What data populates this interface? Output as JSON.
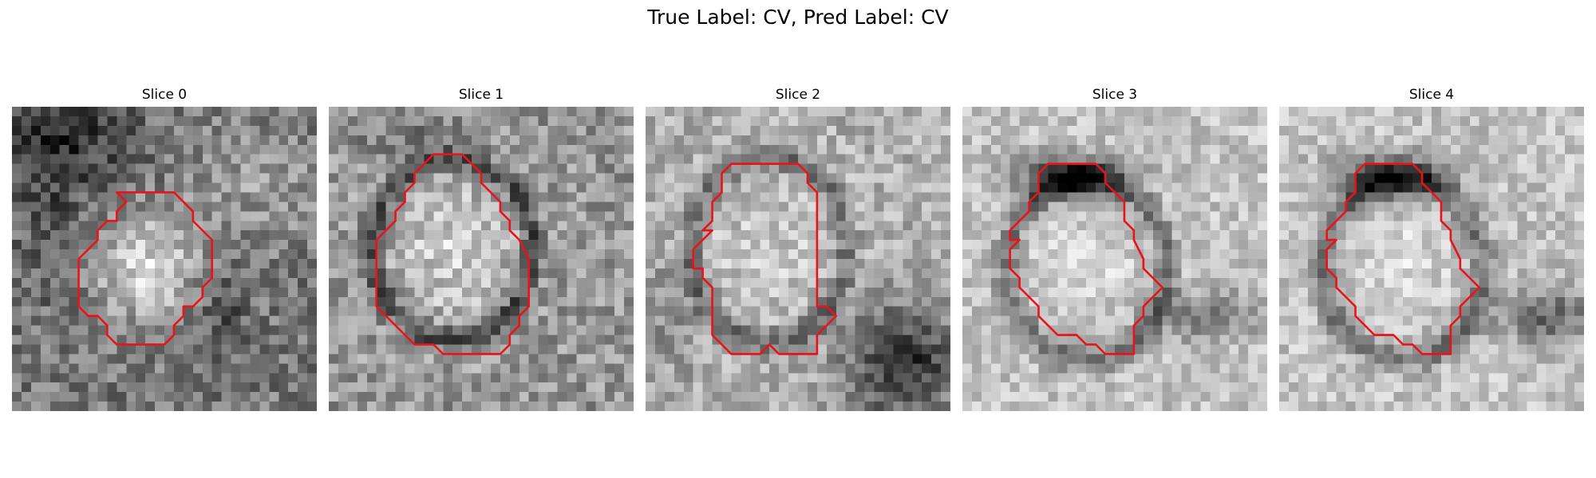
{
  "figure": {
    "title": "True Label: CV, Pred Label: CV"
  },
  "contour_color": "#e8141c",
  "panels": [
    {
      "title": "Slice 0",
      "tone": "dark-background-bright-round-center",
      "contour": [
        [
          11,
          9
        ],
        [
          17,
          9
        ],
        [
          19,
          11
        ],
        [
          19,
          12
        ],
        [
          21,
          14
        ],
        [
          21,
          18
        ],
        [
          20,
          19
        ],
        [
          20,
          20
        ],
        [
          19,
          21
        ],
        [
          18,
          21
        ],
        [
          18,
          22
        ],
        [
          17,
          23
        ],
        [
          17,
          24
        ],
        [
          16,
          25
        ],
        [
          11,
          25
        ],
        [
          10,
          24
        ],
        [
          10,
          23
        ],
        [
          9,
          22
        ],
        [
          8,
          22
        ],
        [
          7,
          21
        ],
        [
          7,
          20
        ],
        [
          7,
          18
        ],
        [
          7,
          16
        ],
        [
          8,
          15
        ],
        [
          9,
          14
        ],
        [
          9,
          13
        ],
        [
          10,
          12
        ],
        [
          11,
          12
        ],
        [
          11,
          11
        ],
        [
          12,
          10
        ],
        [
          11,
          9
        ]
      ]
    },
    {
      "title": "Slice 1",
      "tone": "bright-round-center-dark-ring",
      "contour": [
        [
          11,
          5
        ],
        [
          14,
          5
        ],
        [
          16,
          7
        ],
        [
          16,
          8
        ],
        [
          18,
          10
        ],
        [
          18,
          11
        ],
        [
          19,
          12
        ],
        [
          19,
          13
        ],
        [
          20,
          14
        ],
        [
          21,
          16
        ],
        [
          21,
          21
        ],
        [
          20,
          22
        ],
        [
          20,
          23
        ],
        [
          19,
          24
        ],
        [
          19,
          25
        ],
        [
          18,
          26
        ],
        [
          13,
          26
        ],
        [
          12,
          26
        ],
        [
          11,
          25
        ],
        [
          9,
          25
        ],
        [
          8,
          24
        ],
        [
          7,
          23
        ],
        [
          6,
          22
        ],
        [
          5,
          21
        ],
        [
          5,
          19
        ],
        [
          5,
          16
        ],
        [
          5,
          14
        ],
        [
          6,
          13
        ],
        [
          7,
          12
        ],
        [
          7,
          11
        ],
        [
          8,
          10
        ],
        [
          8,
          9
        ],
        [
          9,
          8
        ],
        [
          9,
          7
        ],
        [
          10,
          6
        ],
        [
          11,
          5
        ]
      ]
    },
    {
      "title": "Slice 2",
      "tone": "bright-center-dark-lower-right",
      "contour": [
        [
          9,
          6
        ],
        [
          16,
          6
        ],
        [
          17,
          7
        ],
        [
          17,
          8
        ],
        [
          18,
          9
        ],
        [
          18,
          21
        ],
        [
          19,
          21
        ],
        [
          20,
          22
        ],
        [
          19,
          23
        ],
        [
          18,
          24
        ],
        [
          18,
          26
        ],
        [
          14,
          26
        ],
        [
          13,
          25
        ],
        [
          12,
          26
        ],
        [
          9,
          26
        ],
        [
          8,
          25
        ],
        [
          7,
          24
        ],
        [
          7,
          21
        ],
        [
          7,
          19
        ],
        [
          6,
          18
        ],
        [
          6,
          17
        ],
        [
          5,
          17
        ],
        [
          5,
          16
        ],
        [
          5,
          15
        ],
        [
          6,
          14
        ],
        [
          7,
          13
        ],
        [
          6,
          13
        ],
        [
          7,
          12
        ],
        [
          7,
          10
        ],
        [
          8,
          9
        ],
        [
          8,
          7
        ],
        [
          9,
          6
        ]
      ]
    },
    {
      "title": "Slice 3",
      "tone": "bright-background-dark-top-cap",
      "contour": [
        [
          9,
          6
        ],
        [
          14,
          6
        ],
        [
          15,
          7
        ],
        [
          15,
          8
        ],
        [
          16,
          9
        ],
        [
          17,
          10
        ],
        [
          17,
          12
        ],
        [
          18,
          13
        ],
        [
          18,
          14
        ],
        [
          19,
          16
        ],
        [
          19,
          17
        ],
        [
          20,
          18
        ],
        [
          21,
          19
        ],
        [
          20,
          20
        ],
        [
          19,
          21
        ],
        [
          19,
          22
        ],
        [
          18,
          23
        ],
        [
          18,
          26
        ],
        [
          15,
          26
        ],
        [
          14,
          25
        ],
        [
          13,
          25
        ],
        [
          12,
          24
        ],
        [
          10,
          24
        ],
        [
          9,
          23
        ],
        [
          8,
          22
        ],
        [
          8,
          21
        ],
        [
          7,
          20
        ],
        [
          6,
          19
        ],
        [
          6,
          18
        ],
        [
          5,
          17
        ],
        [
          5,
          16
        ],
        [
          5,
          15
        ],
        [
          6,
          14
        ],
        [
          5,
          14
        ],
        [
          5,
          13
        ],
        [
          6,
          12
        ],
        [
          7,
          11
        ],
        [
          7,
          10
        ],
        [
          8,
          9
        ],
        [
          8,
          7
        ],
        [
          9,
          6
        ]
      ]
    },
    {
      "title": "Slice 4",
      "tone": "bright-background-dark-top-cap-right-shadow",
      "contour": [
        [
          9,
          6
        ],
        [
          14,
          6
        ],
        [
          15,
          7
        ],
        [
          15,
          8
        ],
        [
          16,
          9
        ],
        [
          17,
          10
        ],
        [
          17,
          12
        ],
        [
          18,
          13
        ],
        [
          18,
          14
        ],
        [
          19,
          16
        ],
        [
          19,
          17
        ],
        [
          20,
          18
        ],
        [
          21,
          19
        ],
        [
          20,
          20
        ],
        [
          19,
          21
        ],
        [
          19,
          22
        ],
        [
          18,
          23
        ],
        [
          18,
          26
        ],
        [
          15,
          26
        ],
        [
          14,
          25
        ],
        [
          13,
          25
        ],
        [
          12,
          24
        ],
        [
          10,
          24
        ],
        [
          9,
          23
        ],
        [
          8,
          22
        ],
        [
          8,
          21
        ],
        [
          7,
          20
        ],
        [
          6,
          19
        ],
        [
          6,
          18
        ],
        [
          5,
          17
        ],
        [
          5,
          16
        ],
        [
          5,
          15
        ],
        [
          6,
          14
        ],
        [
          5,
          14
        ],
        [
          5,
          13
        ],
        [
          6,
          12
        ],
        [
          7,
          11
        ],
        [
          7,
          10
        ],
        [
          8,
          9
        ],
        [
          8,
          7
        ],
        [
          9,
          6
        ]
      ]
    }
  ]
}
